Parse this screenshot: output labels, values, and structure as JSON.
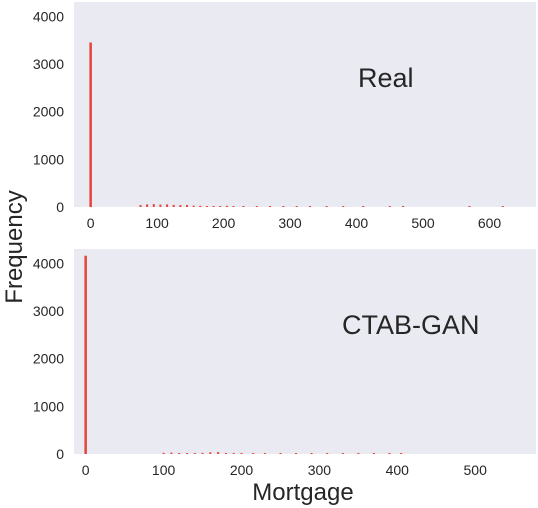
{
  "chart_data": {
    "type": "histogram",
    "shared_ylabel": "Frequency",
    "panels": [
      {
        "label": "Real",
        "xlim": [
          -25,
          670
        ],
        "ylim": [
          0,
          4300
        ],
        "x_ticks": [
          0,
          100,
          200,
          300,
          400,
          500,
          600
        ],
        "y_ticks": [
          0,
          1000,
          2000,
          3000,
          4000
        ],
        "xlabel": "",
        "color": "#e8443a",
        "bins": [
          {
            "x": 0,
            "count": 3450
          },
          {
            "x": 75,
            "count": 40
          },
          {
            "x": 85,
            "count": 55
          },
          {
            "x": 95,
            "count": 60
          },
          {
            "x": 105,
            "count": 50
          },
          {
            "x": 115,
            "count": 55
          },
          {
            "x": 125,
            "count": 45
          },
          {
            "x": 135,
            "count": 40
          },
          {
            "x": 145,
            "count": 45
          },
          {
            "x": 155,
            "count": 30
          },
          {
            "x": 165,
            "count": 25
          },
          {
            "x": 175,
            "count": 20
          },
          {
            "x": 185,
            "count": 15
          },
          {
            "x": 195,
            "count": 12
          },
          {
            "x": 205,
            "count": 25
          },
          {
            "x": 215,
            "count": 10
          },
          {
            "x": 230,
            "count": 8
          },
          {
            "x": 250,
            "count": 6
          },
          {
            "x": 270,
            "count": 5
          },
          {
            "x": 290,
            "count": 4
          },
          {
            "x": 310,
            "count": 4
          },
          {
            "x": 330,
            "count": 3
          },
          {
            "x": 355,
            "count": 3
          },
          {
            "x": 380,
            "count": 2
          },
          {
            "x": 410,
            "count": 2
          },
          {
            "x": 450,
            "count": 15
          },
          {
            "x": 470,
            "count": 2
          },
          {
            "x": 570,
            "count": 12
          },
          {
            "x": 620,
            "count": 2
          }
        ]
      },
      {
        "label": "CTAB-GAN",
        "xlim": [
          -15,
          578
        ],
        "ylim": [
          0,
          4300
        ],
        "x_ticks": [
          0,
          100,
          200,
          300,
          400,
          500
        ],
        "y_ticks": [
          0,
          1000,
          2000,
          3000,
          4000
        ],
        "xlabel": "Mortgage",
        "color": "#e8443a",
        "bins": [
          {
            "x": 0,
            "count": 4160
          },
          {
            "x": 100,
            "count": 25
          },
          {
            "x": 110,
            "count": 30
          },
          {
            "x": 120,
            "count": 20
          },
          {
            "x": 130,
            "count": 15
          },
          {
            "x": 140,
            "count": 15
          },
          {
            "x": 150,
            "count": 25
          },
          {
            "x": 160,
            "count": 35
          },
          {
            "x": 170,
            "count": 40
          },
          {
            "x": 180,
            "count": 20
          },
          {
            "x": 190,
            "count": 15
          },
          {
            "x": 200,
            "count": 12
          },
          {
            "x": 215,
            "count": 10
          },
          {
            "x": 230,
            "count": 8
          },
          {
            "x": 250,
            "count": 6
          },
          {
            "x": 270,
            "count": 5
          },
          {
            "x": 290,
            "count": 4
          },
          {
            "x": 310,
            "count": 4
          },
          {
            "x": 330,
            "count": 3
          },
          {
            "x": 350,
            "count": 3
          },
          {
            "x": 370,
            "count": 2
          },
          {
            "x": 390,
            "count": 2
          },
          {
            "x": 405,
            "count": 8
          }
        ]
      }
    ]
  }
}
